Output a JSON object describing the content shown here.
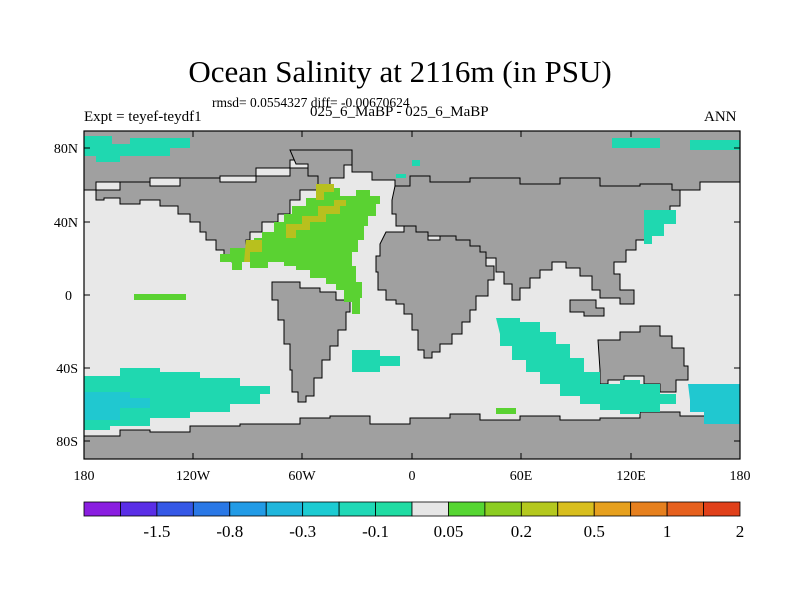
{
  "title": "Ocean Salinity at 2116m (in PSU)",
  "stats": "rmsd= 0.0554327 diff= -0.00670624",
  "experiment": "Expt = teyef-teydf1",
  "subtitle": "025_6_MaBP - 025_6_MaBP",
  "season": "ANN",
  "lat_labels": [
    "80N",
    "40N",
    "0",
    "40S",
    "80S"
  ],
  "lon_labels": [
    "180",
    "120W",
    "60W",
    "0",
    "60E",
    "120E",
    "180"
  ],
  "colorbar": {
    "colors": [
      "#8a1ee0",
      "#5a2ee6",
      "#3558e6",
      "#2a78e6",
      "#229be6",
      "#20b6dc",
      "#1ccbd2",
      "#1fd8b6",
      "#20dca3",
      "#e6e6e6",
      "#56d632",
      "#8ccd22",
      "#b4c81e",
      "#d8be1e",
      "#e6a01e",
      "#e6801e",
      "#e6601e",
      "#e0401a"
    ],
    "labels": [
      "-1.5",
      "-0.8",
      "-0.3",
      "-0.1",
      "0.05",
      "0.2",
      "0.5",
      "1",
      "2"
    ]
  },
  "palette": {
    "land": "#a0a0a0",
    "ocean_neutral": "#e8e8e8",
    "positive_green": "#5ad232",
    "positive_lime": "#8ccd22",
    "positive_yellow": "#b8c01e",
    "negative_teal": "#1fd8b0",
    "negative_cyan": "#20c8d0"
  }
}
